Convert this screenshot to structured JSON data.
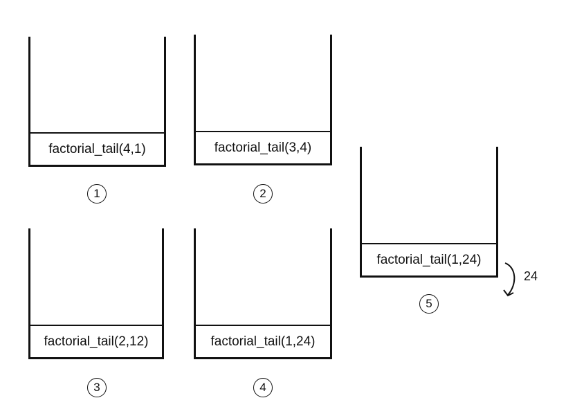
{
  "stacks": [
    {
      "frame": "factorial_tail(4,1)",
      "step": "1"
    },
    {
      "frame": "factorial_tail(3,4)",
      "step": "2"
    },
    {
      "frame": "factorial_tail(2,12)",
      "step": "3"
    },
    {
      "frame": "factorial_tail(1,24)",
      "step": "4"
    },
    {
      "frame": "factorial_tail(1,24)",
      "step": "5"
    }
  ],
  "return_value": "24",
  "icons": {
    "return": "curved-return-arrow-icon"
  },
  "colors": {
    "line": "#111111",
    "background": "#ffffff"
  }
}
